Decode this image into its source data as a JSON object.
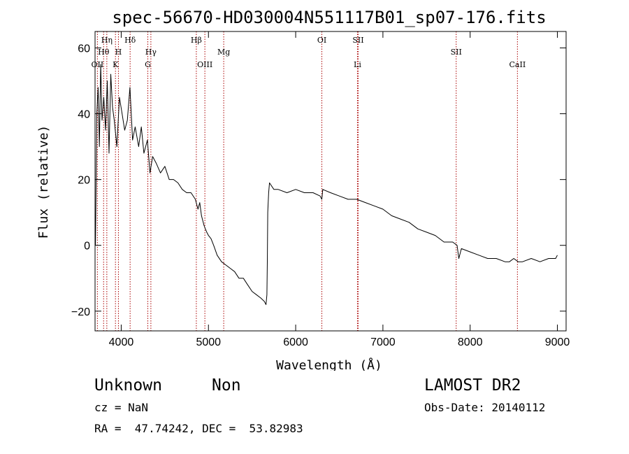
{
  "chart_data": {
    "type": "line",
    "title": "spec-56670-HD030004N551117B01_sp07-176.fits",
    "xlabel": "Wavelength (Å)",
    "ylabel": "Flux (relative)",
    "xlim": [
      3700,
      9100
    ],
    "ylim": [
      -26,
      65
    ],
    "x_ticks": [
      4000,
      5000,
      6000,
      7000,
      8000,
      9000
    ],
    "x_tick_labels": [
      "4000",
      "5000",
      "6000",
      "7000",
      "8000",
      "9000"
    ],
    "y_ticks": [
      -20,
      0,
      20,
      40,
      60
    ],
    "y_tick_labels": [
      "−20",
      "0",
      "20",
      "40",
      "60"
    ],
    "grid": false,
    "line_color": "#000000",
    "line_marker_color": "#aa0000",
    "series": [
      {
        "x": [
          3705,
          3720,
          3735,
          3750,
          3765,
          3780,
          3800,
          3820,
          3840,
          3860,
          3880,
          3900,
          3920,
          3950,
          3980,
          4010,
          4040,
          4070,
          4100,
          4130,
          4160,
          4200,
          4230,
          4260,
          4300,
          4330,
          4360,
          4400,
          4450,
          4500,
          4550,
          4600,
          4650,
          4700,
          4750,
          4800,
          4850,
          4880,
          4900,
          4920,
          4950,
          4980,
          5000,
          5030,
          5060,
          5100,
          5150,
          5200,
          5250,
          5300,
          5350,
          5400,
          5450,
          5500,
          5550,
          5600,
          5640,
          5660,
          5670,
          5675,
          5680,
          5690,
          5700,
          5750,
          5800,
          5900,
          6000,
          6100,
          6200,
          6280,
          6300,
          6310,
          6400,
          6500,
          6600,
          6700,
          6800,
          6900,
          7000,
          7100,
          7200,
          7300,
          7400,
          7500,
          7600,
          7700,
          7800,
          7850,
          7870,
          7900,
          8000,
          8100,
          8200,
          8300,
          8400,
          8450,
          8500,
          8550,
          8600,
          8700,
          8800,
          8900,
          8980,
          9000
        ],
        "values": [
          0,
          40,
          48,
          30,
          55,
          38,
          45,
          35,
          50,
          28,
          52,
          42,
          38,
          30,
          45,
          40,
          35,
          38,
          48,
          32,
          36,
          30,
          36,
          28,
          32,
          22,
          27,
          25,
          22,
          24,
          20,
          20,
          19,
          17,
          16,
          16,
          14,
          11,
          13,
          9,
          6,
          4,
          3,
          2,
          0,
          -3,
          -5,
          -6,
          -7,
          -8,
          -10,
          -10,
          -12,
          -14,
          -15,
          -16,
          -17,
          -18,
          -15,
          -5,
          10,
          16,
          19,
          17,
          17,
          16,
          17,
          16,
          16,
          15,
          14,
          17,
          16,
          15,
          14,
          14,
          13,
          12,
          11,
          9,
          8,
          7,
          5,
          4,
          3,
          1,
          1,
          0,
          -4,
          -1,
          -2,
          -3,
          -4,
          -4,
          -5,
          -5,
          -4,
          -5,
          -5,
          -4,
          -5,
          -4,
          -4,
          -3
        ]
      }
    ],
    "line_markers": [
      {
        "label": "OII",
        "x": 3727,
        "row": 3
      },
      {
        "label": "Hθ",
        "x": 3798,
        "row": 2
      },
      {
        "label": "Hη",
        "x": 3835,
        "row": 1
      },
      {
        "label": "K",
        "x": 3934,
        "row": 3
      },
      {
        "label": "H",
        "x": 3968,
        "row": 2
      },
      {
        "label": "Hδ",
        "x": 4102,
        "row": 1
      },
      {
        "label": "G",
        "x": 4305,
        "row": 3
      },
      {
        "label": "Hγ",
        "x": 4340,
        "row": 2
      },
      {
        "label": "Hβ",
        "x": 4861,
        "row": 1
      },
      {
        "label": "OIII",
        "x": 4959,
        "row": 3
      },
      {
        "label": "Mg",
        "x": 5175,
        "row": 2
      },
      {
        "label": "OI",
        "x": 6300,
        "row": 1
      },
      {
        "label": "SII",
        "x": 6716,
        "row": 1
      },
      {
        "label": "Li",
        "x": 6708,
        "row": 3
      },
      {
        "label": "SII",
        "x": 7840,
        "row": 2
      },
      {
        "label": "CaII",
        "x": 8542,
        "row": 3
      }
    ]
  },
  "footer": {
    "object_class": "Unknown",
    "object_subclass": "Non",
    "survey": "LAMOST DR2",
    "redshift": "cz = NaN",
    "obs_date": "Obs-Date: 20140112",
    "coordinates": "RA =  47.74242, DEC =  53.82983"
  }
}
